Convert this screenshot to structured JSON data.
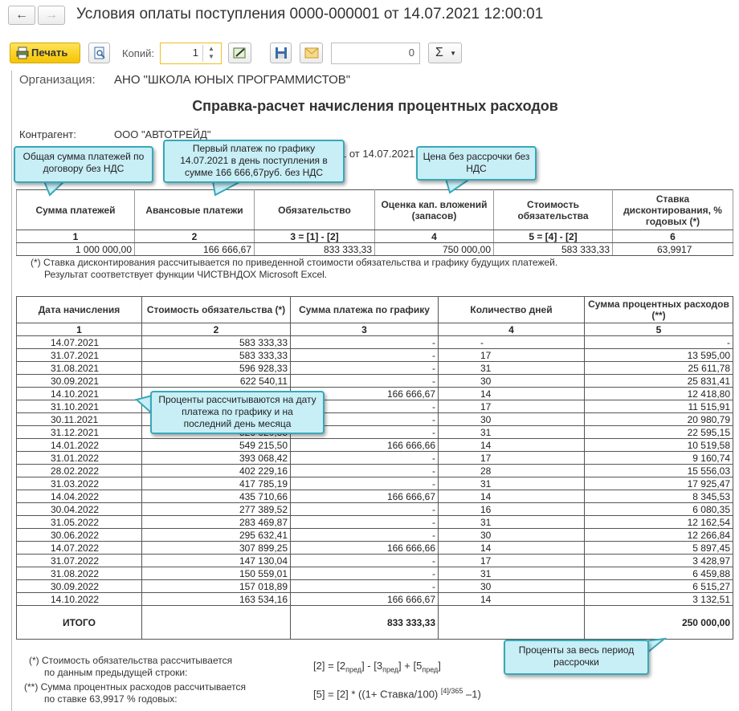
{
  "window": {
    "title": "Условия оплаты поступления 0000-000001 от 14.07.2021 12:00:01"
  },
  "toolbar": {
    "print": "Печать",
    "copies_label": "Копий:",
    "copies": 1,
    "sum_field": 0,
    "sum_button": "Σ"
  },
  "report": {
    "organization_label": "Организация:",
    "organization": "АНО \"ШКОЛА ЮНЫХ ПРОГРАММИСТОВ\"",
    "title": "Справка-расчет начисления процентных расходов",
    "counterparty_label": "Контрагент:",
    "counterparty": "ООО \"АВТОТРЕЙД\"",
    "contract_fragment": "1 от 14.07.2021",
    "summary": {
      "headers": [
        "Сумма платежей",
        "Авансовые платежи",
        "Обязательство",
        "Оценка кап. вложений (запасов)",
        "Стоимость обязательства",
        "Ставка дисконтирования, % годовых (*)"
      ],
      "numbers": [
        "1",
        "2",
        "3 = [1] - [2]",
        "4",
        "5 = [4] - [2]",
        "6"
      ],
      "values": [
        "1 000 000,00",
        "166 666,67",
        "833 333,33",
        "750 000,00",
        "583 333,33",
        "63,9917"
      ]
    },
    "summary_note": [
      "(*) Ставка дисконтирования рассчитывается по приведенной стоимости обязательства и графику будущих платежей.",
      "Результат соответствует функции ЧИСТВНДОХ Microsoft Excel."
    ],
    "schedule": {
      "headers": [
        "Дата начисления",
        "Стоимость обязательства (*)",
        "Сумма платежа по графику",
        "Количество дней",
        "Сумма процентных расходов (**)"
      ],
      "numbers": [
        "1",
        "2",
        "3",
        "4",
        "5"
      ],
      "rows": [
        [
          "14.07.2021",
          "583 333,33",
          "-",
          "-",
          "-"
        ],
        [
          "31.07.2021",
          "583 333,33",
          "-",
          "17",
          "13 595,00"
        ],
        [
          "31.08.2021",
          "596 928,33",
          "-",
          "31",
          "25 611,78"
        ],
        [
          "30.09.2021",
          "622 540,11",
          "-",
          "30",
          "25 831,41"
        ],
        [
          "14.10.2021",
          null,
          "166 666,67",
          "14",
          "12 418,80"
        ],
        [
          "31.10.2021",
          null,
          "-",
          "17",
          "11 515,91"
        ],
        [
          "30.11.2021",
          null,
          "-",
          "30",
          "20 980,79"
        ],
        [
          "31.12.2021",
          "526 620,35",
          "-",
          "31",
          "22 595,15"
        ],
        [
          "14.01.2022",
          "549 215,50",
          "166 666,66",
          "14",
          "10 519,58"
        ],
        [
          "31.01.2022",
          "393 068,42",
          "-",
          "17",
          "9 160,74"
        ],
        [
          "28.02.2022",
          "402 229,16",
          "-",
          "28",
          "15 556,03"
        ],
        [
          "31.03.2022",
          "417 785,19",
          "-",
          "31",
          "17 925,47"
        ],
        [
          "14.04.2022",
          "435 710,66",
          "166 666,67",
          "14",
          "8 345,53"
        ],
        [
          "30.04.2022",
          "277 389,52",
          "-",
          "16",
          "6 080,35"
        ],
        [
          "31.05.2022",
          "283 469,87",
          "-",
          "31",
          "12 162,54"
        ],
        [
          "30.06.2022",
          "295 632,41",
          "-",
          "30",
          "12 266,84"
        ],
        [
          "14.07.2022",
          "307 899,25",
          "166 666,66",
          "14",
          "5 897,45"
        ],
        [
          "31.07.2022",
          "147 130,04",
          "-",
          "17",
          "3 428,97"
        ],
        [
          "31.08.2022",
          "150 559,01",
          "-",
          "31",
          "6 459,88"
        ],
        [
          "30.09.2022",
          "157 018,89",
          "-",
          "30",
          "6 515,27"
        ],
        [
          "14.10.2022",
          "163 534,16",
          "166 666,67",
          "14",
          "3 132,51"
        ]
      ],
      "total_label": "ИТОГО",
      "total_payment": "833 333,33",
      "total_interest": "250 000,00"
    },
    "footnote_1": [
      "(*) Стоимость обязательства рассчитывается",
      "по данным предыдущей строки:"
    ],
    "formula_1": [
      "[2] = [2",
      "пред",
      "] - [3",
      "пред",
      "] + [5",
      "пред",
      "]"
    ],
    "footnote_2": [
      "(**) Сумма процентных расходов рассчитывается",
      "по ставке 63,9917 % годовых:"
    ],
    "formula_2": [
      "[5] = [2] * ((1+ Ставка/100) ",
      "[4]/365",
      " –1)"
    ]
  },
  "callouts": [
    "Общая сумма платежей по договору без НДС",
    "Первый платеж по графику 14.07.2021 в день поступления в сумме 166 666,67руб. без НДС",
    "Цена без рассрочки без НДС",
    "Проценты рассчитываются на дату платежа по графику и на последний день месяца",
    "Проценты за весь период рассрочки"
  ]
}
